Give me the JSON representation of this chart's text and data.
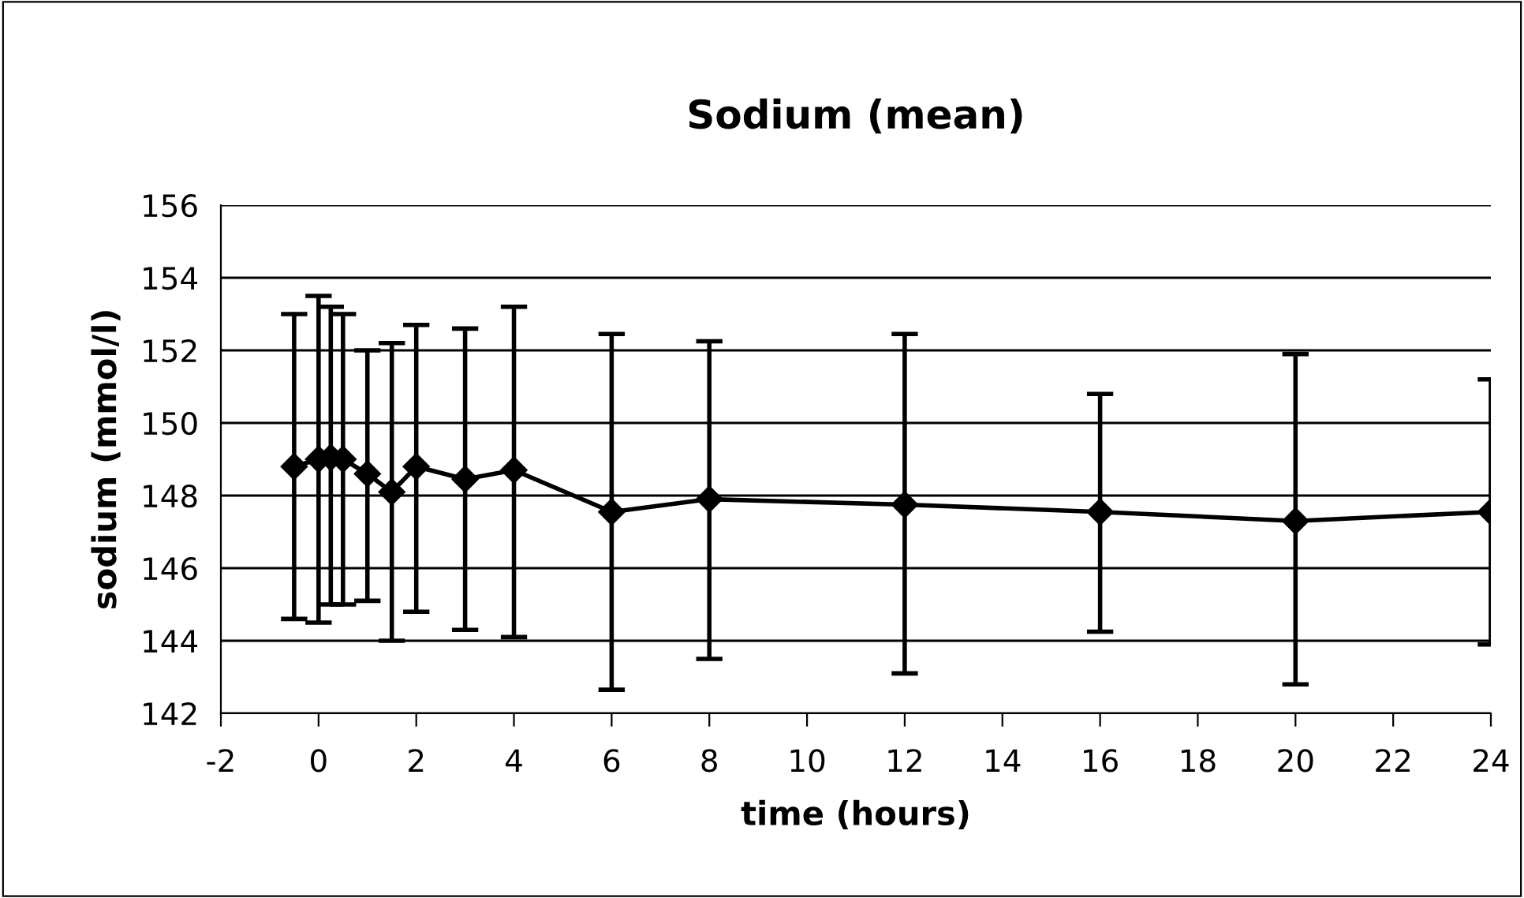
{
  "chart_data": {
    "type": "line",
    "title": "Sodium (mean)",
    "xlabel": "time (hours)",
    "ylabel": "sodium (mmol/l)",
    "x": [
      -0.5,
      0,
      0.25,
      0.5,
      1,
      1.5,
      2,
      3,
      4,
      6,
      8,
      12,
      16,
      20,
      24
    ],
    "series": [
      {
        "color": "#000000",
        "values": [
          148.8,
          149.0,
          149.05,
          149.0,
          148.6,
          148.1,
          148.8,
          148.45,
          148.7,
          147.55,
          147.9,
          147.75,
          147.55,
          147.3,
          147.55
        ],
        "errors": [
          [
            144.6,
            153.0
          ],
          [
            144.5,
            153.5
          ],
          [
            145.0,
            153.2
          ],
          [
            145.0,
            153.0
          ],
          [
            145.1,
            152.0
          ],
          [
            144.0,
            152.2
          ],
          [
            144.8,
            152.7
          ],
          [
            144.3,
            152.6
          ],
          [
            144.1,
            153.2
          ],
          [
            142.65,
            152.45
          ],
          [
            143.5,
            152.25
          ],
          [
            143.1,
            152.45
          ],
          [
            144.25,
            150.8
          ],
          [
            142.8,
            151.9
          ],
          [
            143.9,
            151.2
          ]
        ]
      }
    ],
    "xlim": [
      -2,
      24
    ],
    "xticks": [
      -2,
      0,
      2,
      4,
      6,
      8,
      10,
      12,
      14,
      16,
      18,
      20,
      22,
      24
    ],
    "ylim": [
      142,
      156
    ],
    "yticks": [
      142,
      144,
      146,
      148,
      150,
      152,
      154,
      156
    ],
    "grid": "y",
    "marker": "diamond",
    "line_style": "solid",
    "legend": false
  }
}
